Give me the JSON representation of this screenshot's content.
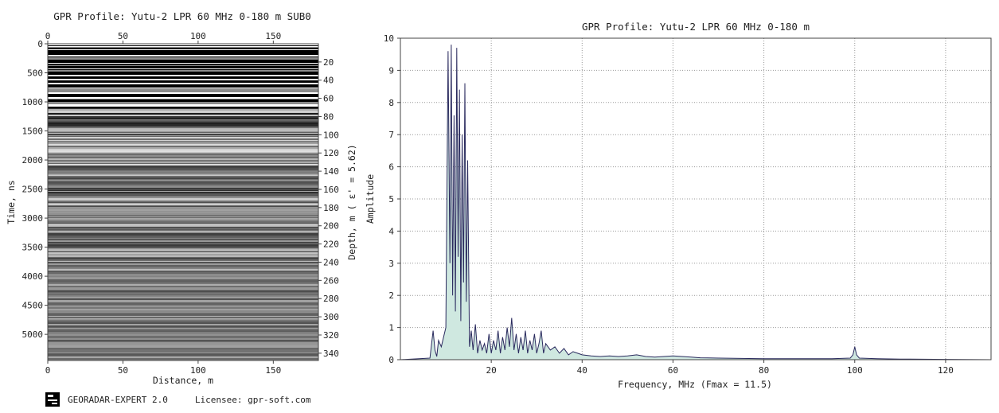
{
  "chart_data": [
    {
      "type": "heatmap",
      "title": "GPR Profile: Yutu-2 LPR 60 MHz 0-180 m SUB0",
      "xlabel": "Distance, m",
      "ylabel": "Time, ns",
      "y2label": "Depth, m ( ε' = 5.62)",
      "xlim": [
        0,
        180
      ],
      "x_ticks": [
        0,
        50,
        100,
        150
      ],
      "ylim": [
        0,
        5450
      ],
      "y_ticks": [
        0,
        500,
        1000,
        1500,
        2000,
        2500,
        3000,
        3500,
        4000,
        4500,
        5000
      ],
      "y2lim": [
        0,
        348
      ],
      "y2_ticks": [
        20,
        40,
        60,
        80,
        100,
        120,
        140,
        160,
        180,
        200,
        220,
        240,
        260,
        280,
        300,
        320,
        340
      ],
      "colormap": "grayscale horizontal reflectors"
    },
    {
      "type": "line",
      "title": "GPR Profile: Yutu-2 LPR 60 MHz 0-180 m",
      "xlabel": "Frequency, MHz (Fmax = 11.5)",
      "ylabel": "Amplitude",
      "xlim": [
        0,
        130
      ],
      "ylim": [
        0,
        10
      ],
      "x_ticks": [
        20,
        40,
        60,
        80,
        100,
        120
      ],
      "y_ticks": [
        0,
        1,
        2,
        3,
        4,
        5,
        6,
        7,
        8,
        9,
        10
      ],
      "grid": true,
      "line_color": "#2a2a5e",
      "fill_color": "#cfe8e0",
      "x": [
        0,
        6.5,
        7.2,
        7.6,
        8.0,
        8.4,
        9.0,
        9.5,
        10.0,
        10.5,
        10.9,
        11.2,
        11.5,
        11.8,
        12.1,
        12.4,
        12.7,
        13.0,
        13.3,
        13.6,
        13.9,
        14.2,
        14.5,
        14.8,
        15.2,
        15.6,
        16.0,
        16.5,
        17.0,
        17.5,
        18.0,
        18.5,
        19.0,
        19.5,
        20.0,
        20.5,
        21.0,
        21.5,
        22.0,
        22.5,
        23.0,
        23.5,
        24.0,
        24.5,
        25.0,
        25.5,
        26.0,
        26.5,
        27.0,
        27.5,
        28.0,
        28.5,
        29.0,
        29.5,
        30.0,
        30.5,
        31.0,
        31.5,
        32.0,
        33.0,
        34.0,
        35.0,
        36.0,
        37.0,
        38.0,
        39.0,
        40.0,
        42.0,
        44.0,
        46.0,
        48.0,
        50.0,
        52.0,
        54.0,
        56.0,
        58.0,
        60.0,
        62.0,
        64.0,
        66.0,
        70.0,
        75.0,
        80.0,
        85.0,
        90.0,
        95.0,
        99.0,
        99.6,
        100.0,
        100.4,
        101.0,
        105.0,
        110.0,
        120.0,
        130.0
      ],
      "y": [
        0,
        0.05,
        0.9,
        0.3,
        0.1,
        0.6,
        0.4,
        0.7,
        1.0,
        9.6,
        3.0,
        9.8,
        2.0,
        7.6,
        1.5,
        9.7,
        3.2,
        8.4,
        1.2,
        7.0,
        2.4,
        8.6,
        1.8,
        6.2,
        0.4,
        0.9,
        0.3,
        1.1,
        0.2,
        0.6,
        0.3,
        0.5,
        0.2,
        0.8,
        0.2,
        0.6,
        0.3,
        0.9,
        0.2,
        0.7,
        0.3,
        1.0,
        0.4,
        1.3,
        0.3,
        0.8,
        0.2,
        0.7,
        0.3,
        0.9,
        0.2,
        0.6,
        0.3,
        0.8,
        0.2,
        0.5,
        0.9,
        0.2,
        0.5,
        0.3,
        0.4,
        0.2,
        0.35,
        0.15,
        0.25,
        0.2,
        0.15,
        0.12,
        0.1,
        0.12,
        0.1,
        0.12,
        0.15,
        0.1,
        0.08,
        0.1,
        0.12,
        0.1,
        0.08,
        0.06,
        0.05,
        0.04,
        0.03,
        0.03,
        0.03,
        0.03,
        0.05,
        0.15,
        0.4,
        0.15,
        0.05,
        0.03,
        0.02,
        0.01,
        0.0
      ]
    }
  ],
  "footer": {
    "product": "GEORADAR-EXPERT 2.0",
    "licensee": "Licensee: gpr-soft.com"
  }
}
